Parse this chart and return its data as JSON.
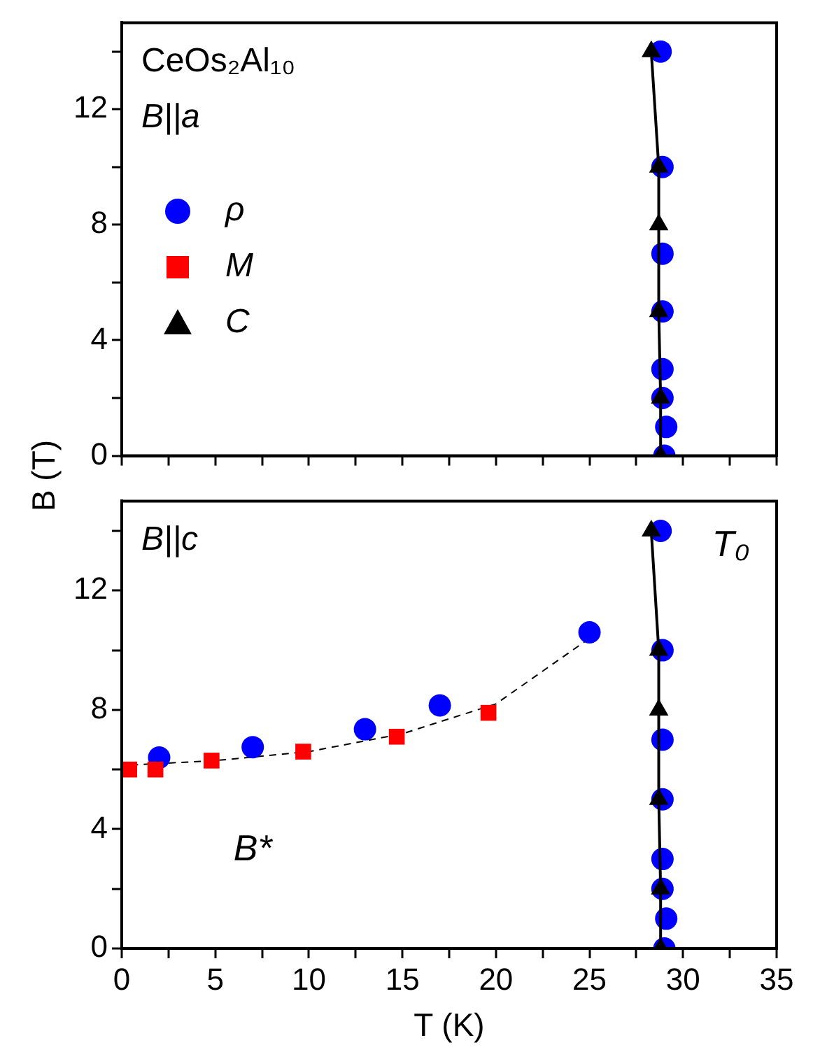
{
  "chart_data": [
    {
      "type": "scatter",
      "title": "CeOs₂Al₁₀",
      "ylabel": "B (T)",
      "annotations": [
        "B||a"
      ],
      "xlim": [
        0,
        35
      ],
      "xticks": [
        0,
        {
          "value": 2.5,
          "label": null
        },
        5,
        {
          "value": 7.5,
          "label": null
        },
        10,
        {
          "value": 12.5,
          "label": null
        },
        15,
        {
          "value": 17.5,
          "label": null
        },
        20,
        {
          "value": 22.5,
          "label": null
        },
        25,
        {
          "value": 27.5,
          "label": null
        },
        30,
        {
          "value": 32.5,
          "label": null
        },
        35
      ],
      "ylim": [
        0,
        15
      ],
      "yticks": [
        0,
        {
          "value": 2,
          "label": null
        },
        4,
        {
          "value": 6,
          "label": null
        },
        8,
        {
          "value": 10,
          "label": null
        },
        12,
        {
          "value": 14,
          "label": null
        }
      ],
      "tick_labels": "y",
      "legend": "left",
      "grid": false,
      "series": [
        {
          "name": "ρ",
          "type": "scatter",
          "marker": "circle",
          "color": "#0000ff",
          "x": [
            28.8,
            28.9,
            28.9,
            28.9,
            28.9,
            28.9,
            29.1,
            29.0
          ],
          "values": [
            14,
            10,
            7,
            5,
            3,
            2,
            1,
            0
          ]
        },
        {
          "name": "M",
          "type": "scatter",
          "marker": "square",
          "color": "#ff0000"
        },
        {
          "name": "C",
          "type": "line",
          "marker": "triangle",
          "line_style": "solid",
          "color": "#000000",
          "x": [
            28.3,
            28.7,
            28.7,
            28.7,
            28.8,
            28.8
          ],
          "values": [
            14,
            10,
            8,
            5,
            2,
            0
          ]
        }
      ]
    },
    {
      "type": "scatter",
      "xlabel": "T (K)",
      "annotations": [
        "B||c",
        "T₀",
        "B*"
      ],
      "xlim": [
        0,
        35
      ],
      "xticks": [
        0,
        {
          "value": 2.5,
          "label": null
        },
        5,
        {
          "value": 7.5,
          "label": null
        },
        10,
        {
          "value": 12.5,
          "label": null
        },
        15,
        {
          "value": 17.5,
          "label": null
        },
        20,
        {
          "value": 22.5,
          "label": null
        },
        25,
        {
          "value": 27.5,
          "label": null
        },
        30,
        {
          "value": 32.5,
          "label": null
        },
        35
      ],
      "ylim": [
        0,
        15
      ],
      "yticks": [
        0,
        {
          "value": 2,
          "label": null
        },
        4,
        {
          "value": 6,
          "label": null
        },
        8,
        {
          "value": 10,
          "label": null
        },
        12,
        {
          "value": 14,
          "label": null
        }
      ],
      "grid": false,
      "series": [
        {
          "type": "line",
          "marker": "none",
          "line_style": "dashed",
          "color": "#000000",
          "x": [
            0.5,
            5,
            10,
            15,
            20,
            25
          ],
          "values": [
            6.15,
            6.3,
            6.6,
            7.2,
            8.2,
            10.4
          ]
        },
        {
          "type": "scatter",
          "marker": "circle",
          "color": "#0000ff",
          "x": [
            2,
            7,
            13,
            17,
            25,
            28.8,
            28.9,
            28.9,
            28.9,
            28.9,
            28.9,
            29.1,
            29.0
          ],
          "values": [
            6.4,
            6.75,
            7.35,
            8.15,
            10.6,
            14,
            10,
            7,
            5,
            3,
            2,
            1,
            0
          ]
        },
        {
          "type": "scatter",
          "marker": "square",
          "color": "#ff0000",
          "x": [
            0.4,
            1.8,
            4.8,
            9.7,
            14.7,
            19.6
          ],
          "values": [
            6.0,
            6.0,
            6.3,
            6.6,
            7.1,
            7.9
          ]
        },
        {
          "type": "line",
          "marker": "triangle",
          "line_style": "solid",
          "color": "#000000",
          "x": [
            28.3,
            28.7,
            28.7,
            28.7,
            28.8,
            28.8
          ],
          "values": [
            14,
            10,
            8,
            5,
            2,
            0
          ]
        }
      ]
    }
  ]
}
